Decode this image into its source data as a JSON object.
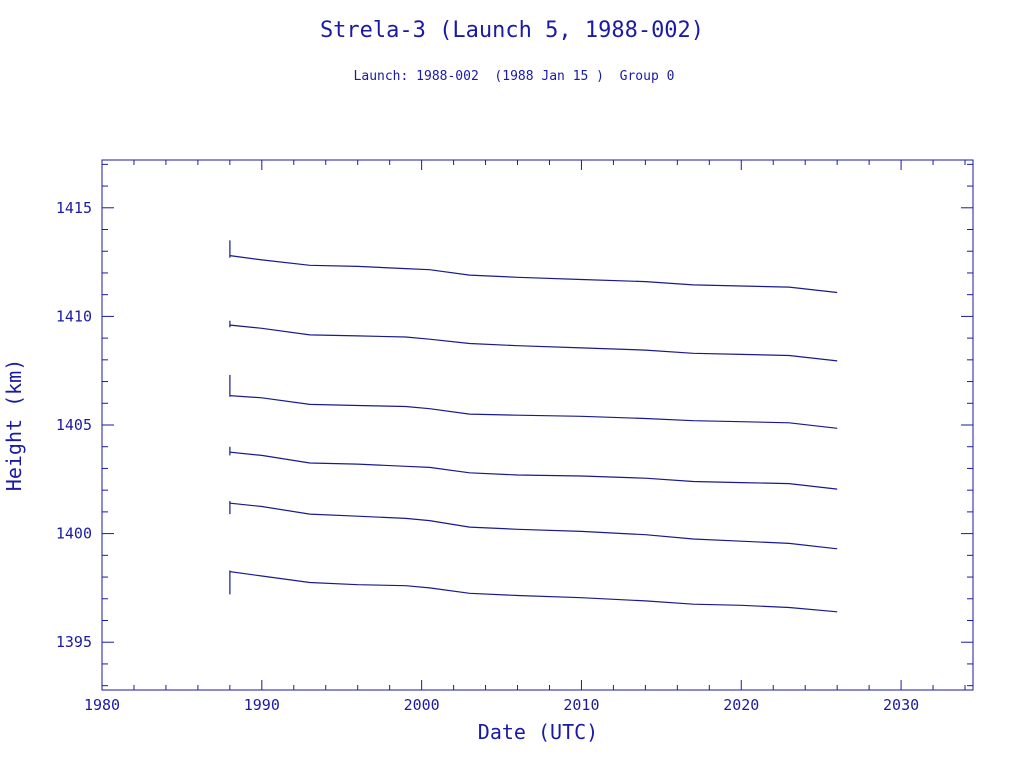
{
  "chart_data": {
    "type": "line",
    "title": "Strela-3 (Launch 5, 1988-002)",
    "subtitle": "Launch: 1988-002  (1988 Jan 15 )  Group 0",
    "xlabel": "Date (UTC)",
    "ylabel": "Height (km)",
    "xlim": [
      1980,
      2034.5
    ],
    "ylim": [
      1392.8,
      1417.2
    ],
    "x_ticks": [
      1980,
      1990,
      2000,
      2010,
      2020,
      2030
    ],
    "y_ticks": [
      1395,
      1400,
      1405,
      1410,
      1415
    ],
    "grid": false,
    "series": [
      {
        "x": [
          1988.0,
          1988.0,
          1988.0,
          1990.0,
          1993.0,
          1996.0,
          1999.0,
          2000.5,
          2003.0,
          2006.0,
          2010.0,
          2014.0,
          2017.0,
          2020.0,
          2023.0,
          2026.0
        ],
        "y": [
          1413.5,
          1412.7,
          1412.8,
          1412.6,
          1412.35,
          1412.3,
          1412.2,
          1412.15,
          1411.9,
          1411.8,
          1411.7,
          1411.6,
          1411.45,
          1411.4,
          1411.35,
          1411.1
        ]
      },
      {
        "x": [
          1988.0,
          1988.0,
          1988.0,
          1990.0,
          1993.0,
          1996.0,
          1999.0,
          2000.5,
          2003.0,
          2006.0,
          2010.0,
          2014.0,
          2017.0,
          2020.0,
          2023.0,
          2026.0
        ],
        "y": [
          1409.8,
          1409.5,
          1409.6,
          1409.45,
          1409.15,
          1409.1,
          1409.05,
          1408.95,
          1408.75,
          1408.65,
          1408.55,
          1408.45,
          1408.3,
          1408.25,
          1408.2,
          1407.95
        ]
      },
      {
        "x": [
          1988.0,
          1988.0,
          1988.0,
          1990.0,
          1993.0,
          1996.0,
          1999.0,
          2000.5,
          2003.0,
          2006.0,
          2010.0,
          2014.0,
          2017.0,
          2020.0,
          2023.0,
          2026.0
        ],
        "y": [
          1407.3,
          1406.3,
          1406.35,
          1406.25,
          1405.95,
          1405.9,
          1405.85,
          1405.75,
          1405.5,
          1405.45,
          1405.4,
          1405.3,
          1405.2,
          1405.15,
          1405.1,
          1404.85
        ]
      },
      {
        "x": [
          1988.0,
          1988.0,
          1988.0,
          1990.0,
          1993.0,
          1996.0,
          1999.0,
          2000.5,
          2003.0,
          2006.0,
          2010.0,
          2014.0,
          2017.0,
          2020.0,
          2023.0,
          2026.0
        ],
        "y": [
          1404.0,
          1403.6,
          1403.75,
          1403.6,
          1403.25,
          1403.2,
          1403.1,
          1403.05,
          1402.8,
          1402.7,
          1402.65,
          1402.55,
          1402.4,
          1402.35,
          1402.3,
          1402.05
        ]
      },
      {
        "x": [
          1988.0,
          1988.0,
          1988.0,
          1990.0,
          1993.0,
          1996.0,
          1999.0,
          2000.5,
          2003.0,
          2006.0,
          2010.0,
          2014.0,
          2017.0,
          2020.0,
          2023.0,
          2026.0
        ],
        "y": [
          1401.5,
          1400.9,
          1401.4,
          1401.25,
          1400.9,
          1400.8,
          1400.7,
          1400.6,
          1400.3,
          1400.2,
          1400.1,
          1399.95,
          1399.75,
          1399.65,
          1399.55,
          1399.3
        ]
      },
      {
        "x": [
          1988.0,
          1988.0,
          1988.0,
          1990.0,
          1993.0,
          1996.0,
          1999.0,
          2000.5,
          2003.0,
          2006.0,
          2010.0,
          2014.0,
          2017.0,
          2020.0,
          2023.0,
          2026.0
        ],
        "y": [
          1397.2,
          1398.3,
          1398.25,
          1398.05,
          1397.75,
          1397.65,
          1397.6,
          1397.5,
          1397.25,
          1397.15,
          1397.05,
          1396.9,
          1396.75,
          1396.7,
          1396.6,
          1396.4
        ]
      }
    ]
  }
}
